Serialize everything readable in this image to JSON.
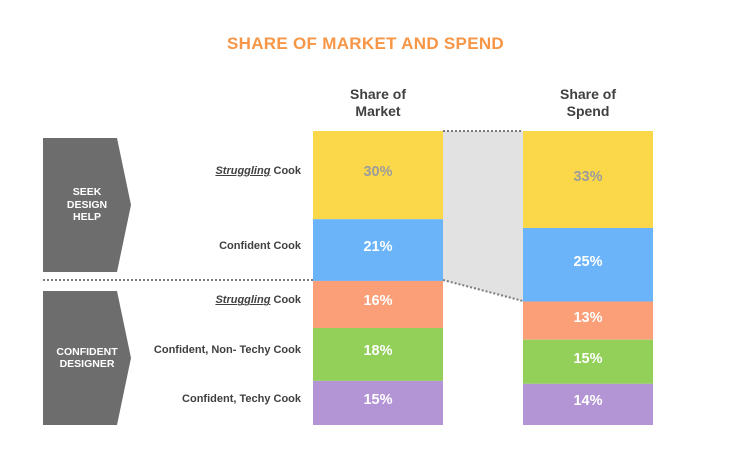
{
  "title": "SHARE OF MARKET AND SPEND",
  "title_color": "#f79646",
  "groups": [
    {
      "label": "SEEK\nDESIGN\nHELP"
    },
    {
      "label": "CONFIDENT\nDESIGNER"
    }
  ],
  "rows": [
    {
      "emph": "Struggling",
      "rest": " Cook"
    },
    {
      "emph": "",
      "rest": "Confident Cook"
    },
    {
      "emph": "Struggling",
      "rest": " Cook"
    },
    {
      "emph": "",
      "rest": "Confident, Non- Techy Cook"
    },
    {
      "emph": "",
      "rest": "Confident, Techy Cook"
    }
  ],
  "chart_data": {
    "type": "bar",
    "stacked": true,
    "categories": [
      "Share of\nMarket",
      "Share of\nSpend"
    ],
    "series": [
      {
        "values": [
          30,
          33
        ],
        "labels": [
          "30%",
          "33%"
        ],
        "color": "#fbd84a",
        "label_color": "#9c9c9c"
      },
      {
        "values": [
          21,
          25
        ],
        "labels": [
          "21%",
          "25%"
        ],
        "color": "#6cb4fa",
        "label_color": "#ffffff"
      },
      {
        "values": [
          16,
          13
        ],
        "labels": [
          "16%",
          "13%"
        ],
        "color": "#fa9f78",
        "label_color": "#ffffff"
      },
      {
        "values": [
          18,
          15
        ],
        "labels": [
          "18%",
          "15%"
        ],
        "color": "#92d05a",
        "label_color": "#ffffff"
      },
      {
        "values": [
          15,
          14
        ],
        "labels": [
          "15%",
          "14%"
        ],
        "color": "#b395d6",
        "label_color": "#ffffff"
      }
    ]
  },
  "colors": {
    "chevron": "#6d6d6d",
    "row_text": "#404040"
  }
}
